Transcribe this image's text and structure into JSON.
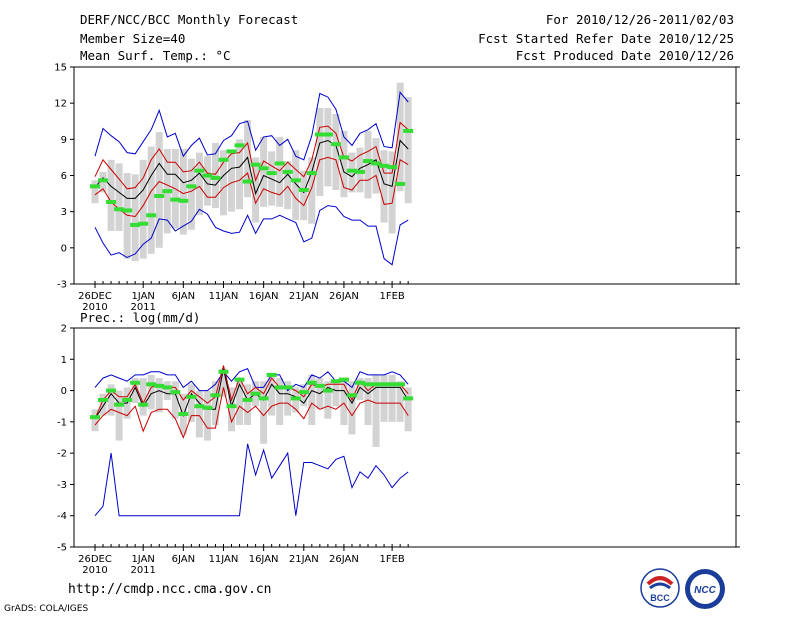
{
  "header": {
    "title": "DERF/NCC/BCC Monthly Forecast",
    "member_size": "Member Size=40",
    "variable1": "Mean Surf. Temp.: °C",
    "forecast_range": "For 2010/12/26-2011/02/03",
    "start_refer": "Fcst Started Refer Date 2010/12/25",
    "produced": "Fcst Produced Date 2010/12/26"
  },
  "footer": {
    "url": "http://cmdp.ncc.cma.gov.cn",
    "credit": "GrADS: COLA/IGES",
    "logo_left": "BCC",
    "logo_right": "NCC"
  },
  "colors": {
    "max_min": "#0000cc",
    "spread": "#cc0000",
    "mean": "#000000",
    "median": "#33dd33",
    "box": "#d3d3d3"
  },
  "chart_data": [
    {
      "type": "line",
      "title": "Mean Surf. Temp.: °C",
      "x_start": "2010-12-26",
      "n_days": 40,
      "x_ticks": [
        {
          "day": 0,
          "label": "26DEC",
          "sub": "2010"
        },
        {
          "day": 6,
          "label": "1JAN",
          "sub": "2011"
        },
        {
          "day": 11,
          "label": "6JAN",
          "sub": ""
        },
        {
          "day": 16,
          "label": "11JAN",
          "sub": ""
        },
        {
          "day": 21,
          "label": "16JAN",
          "sub": ""
        },
        {
          "day": 26,
          "label": "21JAN",
          "sub": ""
        },
        {
          "day": 31,
          "label": "26JAN",
          "sub": ""
        },
        {
          "day": 37,
          "label": "1FEB",
          "sub": ""
        }
      ],
      "ylim": [
        -3,
        15
      ],
      "y_ticks": [
        -3,
        0,
        3,
        6,
        9,
        12,
        15
      ],
      "series": [
        {
          "name": "max",
          "values": [
            7.6,
            9.9,
            9.3,
            8.8,
            7.9,
            7.8,
            8.8,
            9.8,
            11.4,
            9.2,
            9.5,
            7.6,
            8.5,
            9.1,
            7.7,
            7.8,
            8.9,
            9.3,
            10.3,
            10.5,
            8.1,
            9.2,
            9.3,
            8.5,
            9.0,
            7.6,
            7.3,
            9.3,
            12.8,
            12.5,
            11.5,
            9.2,
            8.5,
            9.5,
            9.8,
            10.3,
            8.4,
            8.3,
            12.9,
            12.1
          ]
        },
        {
          "name": "spread_upper",
          "values": [
            5.9,
            7.3,
            6.5,
            5.7,
            4.9,
            5.0,
            5.8,
            7.3,
            8.2,
            7.1,
            7.1,
            6.3,
            6.4,
            7.1,
            6.2,
            6.1,
            7.1,
            7.8,
            7.9,
            8.7,
            5.6,
            7.2,
            6.8,
            6.4,
            7.1,
            6.5,
            5.9,
            7.3,
            10.0,
            10.1,
            9.5,
            7.5,
            7.2,
            7.7,
            8.0,
            8.4,
            6.2,
            6.2,
            10.4,
            9.8
          ]
        },
        {
          "name": "mean",
          "values": [
            5.0,
            5.8,
            5.1,
            4.6,
            4.1,
            4.1,
            4.8,
            6.0,
            7.0,
            6.1,
            6.1,
            5.4,
            5.6,
            6.2,
            5.3,
            5.2,
            6.0,
            6.6,
            6.7,
            7.5,
            4.5,
            6.0,
            5.7,
            5.4,
            6.1,
            5.3,
            4.6,
            6.3,
            8.7,
            8.9,
            8.5,
            6.3,
            5.9,
            6.6,
            6.9,
            7.3,
            5.3,
            5.1,
            8.9,
            8.2
          ]
        },
        {
          "name": "spread_lower",
          "values": [
            4.4,
            4.9,
            3.8,
            3.2,
            2.7,
            2.6,
            3.5,
            4.7,
            5.5,
            5.2,
            4.9,
            4.5,
            4.7,
            5.1,
            4.2,
            4.2,
            5.0,
            5.4,
            5.6,
            6.2,
            3.7,
            4.9,
            4.6,
            4.4,
            5.1,
            4.1,
            3.5,
            5.0,
            7.3,
            7.5,
            7.3,
            5.0,
            4.8,
            5.6,
            5.6,
            6.0,
            3.6,
            3.7,
            7.3,
            6.9
          ]
        },
        {
          "name": "min",
          "values": [
            1.7,
            0.4,
            -0.6,
            -0.4,
            -0.8,
            -0.5,
            0.3,
            0.8,
            2.4,
            2.3,
            1.4,
            1.8,
            2.2,
            3.2,
            2.8,
            1.7,
            1.4,
            1.2,
            1.3,
            2.7,
            1.2,
            2.4,
            2.4,
            2.7,
            2.4,
            2.1,
            0.5,
            0.8,
            3.1,
            3.5,
            3.4,
            2.6,
            2.3,
            2.3,
            1.8,
            1.8,
            -0.9,
            -1.4,
            1.9,
            2.3
          ]
        },
        {
          "name": "median",
          "values": [
            5.1,
            5.6,
            3.8,
            3.2,
            3.1,
            1.9,
            2.0,
            2.7,
            4.3,
            4.7,
            4.0,
            3.9,
            5.1,
            6.4,
            6.0,
            5.8,
            7.3,
            8.0,
            8.5,
            5.5,
            6.9,
            6.6,
            6.2,
            7.0,
            6.3,
            5.6,
            4.8,
            6.2,
            9.4,
            9.4,
            8.6,
            7.5,
            6.4,
            6.3,
            7.2,
            7.0,
            6.8,
            6.7,
            5.3,
            9.7
          ]
        },
        {
          "name": "box_high",
          "values": [
            5.6,
            6.3,
            7.3,
            7.0,
            6.2,
            6.1,
            7.3,
            8.4,
            9.6,
            8.2,
            8.2,
            8.2,
            7.4,
            7.9,
            7.6,
            8.7,
            8.1,
            8.0,
            9.0,
            10.6,
            7.5,
            9.2,
            8.0,
            9.2,
            7.2,
            8.1,
            6.4,
            7.5,
            11.6,
            11.6,
            11.1,
            9.7,
            7.9,
            8.3,
            9.7,
            9.1,
            8.1,
            8.0,
            13.7,
            12.5
          ]
        },
        {
          "name": "box_low",
          "values": [
            3.7,
            4.6,
            1.4,
            1.4,
            -0.9,
            -1.1,
            -0.9,
            -0.5,
            0.0,
            1.2,
            1.6,
            1.1,
            1.5,
            2.7,
            3.5,
            3.3,
            2.7,
            3.0,
            3.2,
            4.2,
            2.1,
            3.4,
            3.5,
            3.4,
            3.2,
            2.3,
            2.3,
            2.0,
            4.3,
            5.1,
            4.8,
            4.2,
            4.6,
            4.6,
            4.1,
            4.5,
            2.1,
            1.2,
            4.7,
            3.7
          ]
        }
      ]
    },
    {
      "type": "line",
      "title": "Prec.: log(mm/d)",
      "x_start": "2010-12-26",
      "n_days": 40,
      "x_ticks": [
        {
          "day": 0,
          "label": "26DEC",
          "sub": "2010"
        },
        {
          "day": 6,
          "label": "1JAN",
          "sub": "2011"
        },
        {
          "day": 11,
          "label": "6JAN",
          "sub": ""
        },
        {
          "day": 16,
          "label": "11JAN",
          "sub": ""
        },
        {
          "day": 21,
          "label": "16JAN",
          "sub": ""
        },
        {
          "day": 26,
          "label": "21JAN",
          "sub": ""
        },
        {
          "day": 31,
          "label": "26JAN",
          "sub": ""
        },
        {
          "day": 37,
          "label": "1FEB",
          "sub": ""
        }
      ],
      "ylim": [
        -5,
        2
      ],
      "y_ticks": [
        -5,
        -4,
        -3,
        -2,
        -1,
        0,
        1,
        2
      ],
      "series": [
        {
          "name": "max",
          "values": [
            0.1,
            0.4,
            0.5,
            0.4,
            0.3,
            0.5,
            0.5,
            0.6,
            0.6,
            0.5,
            0.5,
            0.1,
            0.3,
            0.0,
            0.0,
            0.2,
            0.6,
            0.3,
            0.6,
            0.7,
            0.1,
            0.1,
            0.5,
            0.5,
            0.0,
            0.2,
            0.1,
            0.5,
            0.4,
            0.6,
            0.3,
            0.3,
            0.1,
            0.6,
            0.5,
            0.5,
            0.5,
            0.6,
            0.5,
            0.2
          ]
        },
        {
          "name": "spread_upper",
          "values": [
            -0.9,
            -0.3,
            0.0,
            -0.2,
            -0.2,
            0.2,
            -0.4,
            0.1,
            0.2,
            0.1,
            0.1,
            -0.3,
            0.0,
            -0.2,
            -0.4,
            -0.2,
            0.8,
            -0.3,
            0.4,
            -0.1,
            0.1,
            -0.1,
            0.4,
            0.1,
            0.1,
            0.0,
            -0.2,
            0.2,
            0.1,
            0.2,
            0.2,
            0.2,
            -0.3,
            0.3,
            0.0,
            0.2,
            0.2,
            0.2,
            0.2,
            -0.1
          ]
        },
        {
          "name": "mean",
          "values": [
            -0.9,
            -0.5,
            -0.1,
            -0.4,
            -0.4,
            0.1,
            -0.5,
            -0.1,
            0.0,
            -0.1,
            -0.1,
            -0.8,
            -0.1,
            -0.4,
            -0.6,
            -0.6,
            0.7,
            -0.5,
            0.2,
            -0.3,
            -0.1,
            -0.3,
            0.2,
            -0.1,
            -0.1,
            -0.2,
            -0.4,
            0.0,
            -0.1,
            0.1,
            0.0,
            0.0,
            -0.4,
            0.1,
            -0.1,
            0.1,
            0.1,
            0.1,
            0.1,
            -0.3
          ]
        },
        {
          "name": "spread_lower",
          "values": [
            -1.1,
            -0.8,
            -0.6,
            -0.7,
            -0.8,
            -0.5,
            -1.3,
            -0.7,
            -0.6,
            -0.6,
            -0.9,
            -1.5,
            -0.8,
            -0.8,
            -1.2,
            -1.2,
            0.1,
            -1.0,
            -0.5,
            -0.7,
            -0.5,
            -0.8,
            -0.5,
            -0.4,
            -0.4,
            -0.6,
            -0.9,
            -0.4,
            -0.6,
            -0.5,
            -0.6,
            -0.4,
            -0.8,
            -0.4,
            -0.3,
            -0.4,
            -0.4,
            -0.4,
            -0.4,
            -0.8
          ]
        },
        {
          "name": "min",
          "values": [
            -4.0,
            -3.7,
            -2.0,
            -4.0,
            -4.0,
            -4.0,
            -4.0,
            -4.0,
            -4.0,
            -4.0,
            -4.0,
            -4.0,
            -4.0,
            -4.0,
            -4.0,
            -4.0,
            -4.0,
            -4.0,
            -4.0,
            -1.7,
            -2.7,
            -1.9,
            -2.8,
            -2.4,
            -2.0,
            -4.0,
            -2.3,
            -2.3,
            -2.4,
            -2.5,
            -2.2,
            -2.1,
            -3.1,
            -2.6,
            -2.8,
            -2.4,
            -2.7,
            -3.1,
            -2.8,
            -2.6
          ]
        },
        {
          "name": "median",
          "values": [
            -0.85,
            -0.3,
            0.0,
            -0.45,
            -0.3,
            0.25,
            -0.45,
            0.2,
            0.15,
            0.1,
            -0.05,
            -0.75,
            -0.2,
            -0.5,
            -0.55,
            -0.15,
            0.6,
            -0.5,
            0.35,
            -0.3,
            -0.1,
            -0.25,
            0.5,
            0.1,
            0.1,
            -0.25,
            -0.05,
            0.25,
            0.15,
            0.0,
            0.3,
            0.35,
            -0.15,
            0.25,
            0.2,
            0.2,
            0.2,
            0.2,
            0.2,
            -0.25
          ]
        },
        {
          "name": "box_high",
          "values": [
            -0.6,
            -0.1,
            0.2,
            0.0,
            0.1,
            0.4,
            0.4,
            0.5,
            0.4,
            0.3,
            0.3,
            -0.1,
            0.2,
            0.0,
            0.0,
            0.3,
            0.7,
            0.1,
            0.4,
            0.2,
            0.3,
            0.3,
            0.5,
            0.4,
            0.3,
            0.1,
            0.2,
            0.5,
            0.4,
            0.3,
            0.3,
            0.4,
            0.3,
            0.4,
            0.4,
            0.5,
            0.5,
            0.5,
            0.3,
            0.1
          ]
        },
        {
          "name": "box_low",
          "values": [
            -1.3,
            -0.8,
            -0.8,
            -1.6,
            -0.9,
            -0.4,
            -0.8,
            -0.6,
            -0.7,
            -0.3,
            -0.9,
            -1.4,
            -1.0,
            -1.5,
            -1.6,
            -1.1,
            -0.2,
            -1.3,
            -1.1,
            -1.1,
            -0.5,
            -1.7,
            -0.8,
            -1.1,
            -0.8,
            -0.7,
            -0.5,
            -1.1,
            -0.6,
            -0.9,
            -0.5,
            -1.1,
            -1.4,
            -0.3,
            -1.1,
            -1.8,
            -1.0,
            -1.0,
            -1.0,
            -1.3
          ]
        }
      ]
    }
  ]
}
